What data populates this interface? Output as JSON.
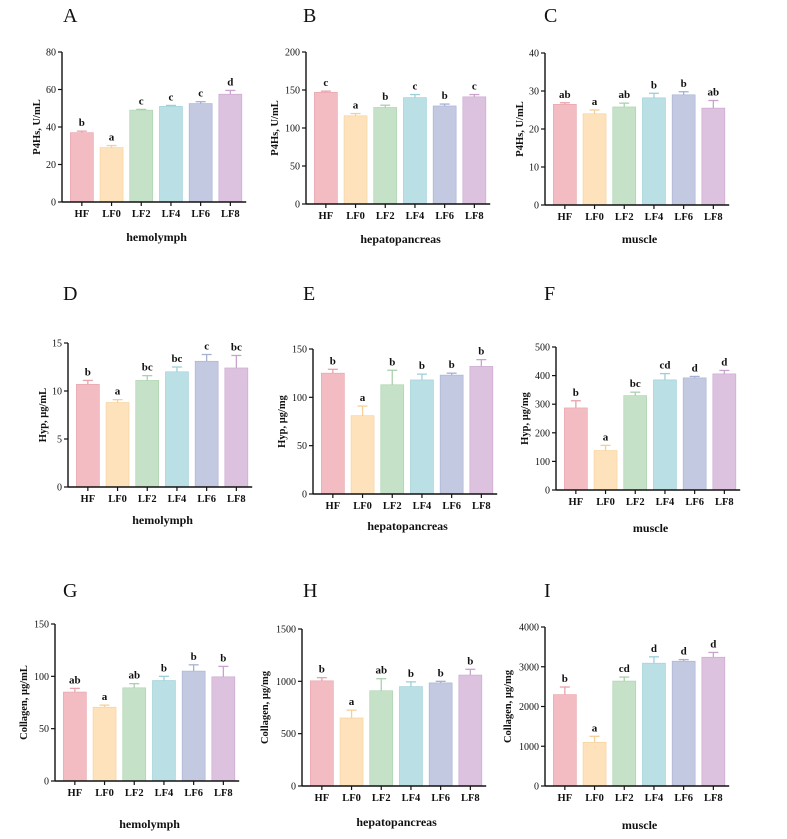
{
  "colors": {
    "bars": [
      "#f2bcc2",
      "#fde2bb",
      "#c5e2c8",
      "#badfe5",
      "#c3c9e1",
      "#ddc2df"
    ],
    "errors": [
      "#e8a2aa",
      "#f6cf98",
      "#a9d1ad",
      "#9ccfd8",
      "#a7b0d3",
      "#c9a3cd"
    ],
    "axis": "#111111"
  },
  "chart_data": [
    {
      "panel": "A",
      "type": "bar",
      "title": "",
      "ylabel": "P4Hs, U/mL",
      "xlabel": "hemolymph",
      "categories": [
        "HF",
        "LF0",
        "LF2",
        "LF4",
        "LF6",
        "LF8"
      ],
      "ylim": [
        0,
        80
      ],
      "yticks": [
        0,
        20,
        40,
        60,
        80
      ],
      "values": [
        37,
        29,
        49,
        51,
        52.5,
        57.5
      ],
      "errors": [
        0.8,
        1.1,
        0.4,
        0.5,
        1,
        2
      ],
      "letters": [
        "b",
        "a",
        "c",
        "c",
        "c",
        "d"
      ]
    },
    {
      "panel": "B",
      "type": "bar",
      "title": "",
      "ylabel": "P4Hs, U/mL",
      "xlabel": "hepatopancreas",
      "categories": [
        "HF",
        "LF0",
        "LF2",
        "LF4",
        "LF6",
        "LF8"
      ],
      "ylim": [
        0,
        200
      ],
      "yticks": [
        0,
        50,
        100,
        150,
        200
      ],
      "values": [
        147,
        116,
        127,
        140,
        129,
        141
      ],
      "errors": [
        1.5,
        3,
        3,
        4,
        2.5,
        3
      ],
      "letters": [
        "c",
        "a",
        "b",
        "c",
        "b",
        "c"
      ]
    },
    {
      "panel": "C",
      "type": "bar",
      "title": "",
      "ylabel": "P4Hs, U/mL",
      "xlabel": "muscle",
      "categories": [
        "HF",
        "LF0",
        "LF2",
        "LF4",
        "LF6",
        "LF8"
      ],
      "ylim": [
        0,
        40
      ],
      "yticks": [
        0,
        10,
        20,
        30,
        40
      ],
      "values": [
        26.5,
        24,
        25.8,
        28.2,
        29,
        25.5
      ],
      "errors": [
        0.4,
        1,
        1,
        1.2,
        0.8,
        2
      ],
      "letters": [
        "ab",
        "a",
        "ab",
        "b",
        "b",
        "ab"
      ]
    },
    {
      "panel": "D",
      "type": "bar",
      "title": "",
      "ylabel": "Hyp, μg/mL",
      "xlabel": "hemolymph",
      "categories": [
        "HF",
        "LF0",
        "LF2",
        "LF4",
        "LF6",
        "LF8"
      ],
      "ylim": [
        0,
        15
      ],
      "yticks": [
        0,
        5,
        10,
        15
      ],
      "values": [
        10.7,
        8.8,
        11.1,
        12,
        13.1,
        12.4
      ],
      "errors": [
        0.4,
        0.3,
        0.5,
        0.5,
        0.7,
        1.3
      ],
      "letters": [
        "b",
        "a",
        "bc",
        "bc",
        "c",
        "bc"
      ]
    },
    {
      "panel": "E",
      "type": "bar",
      "title": "",
      "ylabel": "Hyp, μg/mg",
      "xlabel": "hepatopancreas",
      "categories": [
        "HF",
        "LF0",
        "LF2",
        "LF4",
        "LF6",
        "LF8"
      ],
      "ylim": [
        0,
        150
      ],
      "yticks": [
        0,
        50,
        100,
        150
      ],
      "values": [
        125,
        81,
        113,
        118,
        123,
        132
      ],
      "errors": [
        4,
        10,
        15,
        6,
        2,
        7
      ],
      "letters": [
        "b",
        "a",
        "b",
        "b",
        "b",
        "b"
      ]
    },
    {
      "panel": "F",
      "type": "bar",
      "title": "",
      "ylabel": "Hyp, μg/mg",
      "xlabel": "muscle",
      "categories": [
        "HF",
        "LF0",
        "LF2",
        "LF4",
        "LF6",
        "LF8"
      ],
      "ylim": [
        0,
        500
      ],
      "yticks": [
        0,
        100,
        200,
        300,
        400,
        500
      ],
      "values": [
        287,
        138,
        330,
        385,
        392,
        406
      ],
      "errors": [
        25,
        18,
        12,
        22,
        5,
        12
      ],
      "letters": [
        "b",
        "a",
        "bc",
        "cd",
        "d",
        "d"
      ]
    },
    {
      "panel": "G",
      "type": "bar",
      "title": "",
      "ylabel": "Collagen, μg/mL",
      "xlabel": "hemolymph",
      "categories": [
        "HF",
        "LF0",
        "LF2",
        "LF4",
        "LF6",
        "LF8"
      ],
      "ylim": [
        0,
        150
      ],
      "yticks": [
        0,
        50,
        100,
        150
      ],
      "values": [
        85,
        70.5,
        89,
        96,
        105,
        99.5
      ],
      "errors": [
        3.5,
        2,
        4,
        4,
        6,
        10
      ],
      "letters": [
        "ab",
        "a",
        "ab",
        "b",
        "b",
        "b"
      ]
    },
    {
      "panel": "H",
      "type": "bar",
      "title": "",
      "ylabel": "Collagen, μg/mg",
      "xlabel": "hepatopancreas",
      "categories": [
        "HF",
        "LF0",
        "LF2",
        "LF4",
        "LF6",
        "LF8"
      ],
      "ylim": [
        0,
        1500
      ],
      "yticks": [
        0,
        500,
        1000,
        1500
      ],
      "values": [
        1005,
        650,
        910,
        950,
        985,
        1060
      ],
      "errors": [
        30,
        75,
        115,
        45,
        15,
        55
      ],
      "letters": [
        "b",
        "a",
        "ab",
        "b",
        "b",
        "b"
      ]
    },
    {
      "panel": "I",
      "type": "bar",
      "title": "",
      "ylabel": "Collagen, μg/mg",
      "xlabel": "muscle",
      "categories": [
        "HF",
        "LF0",
        "LF2",
        "LF4",
        "LF6",
        "LF8"
      ],
      "ylim": [
        0,
        4000
      ],
      "yticks": [
        0,
        1000,
        2000,
        3000,
        4000
      ],
      "values": [
        2300,
        1100,
        2640,
        3090,
        3140,
        3240
      ],
      "errors": [
        190,
        150,
        100,
        160,
        40,
        120
      ],
      "letters": [
        "b",
        "a",
        "cd",
        "d",
        "d",
        "d"
      ]
    }
  ]
}
